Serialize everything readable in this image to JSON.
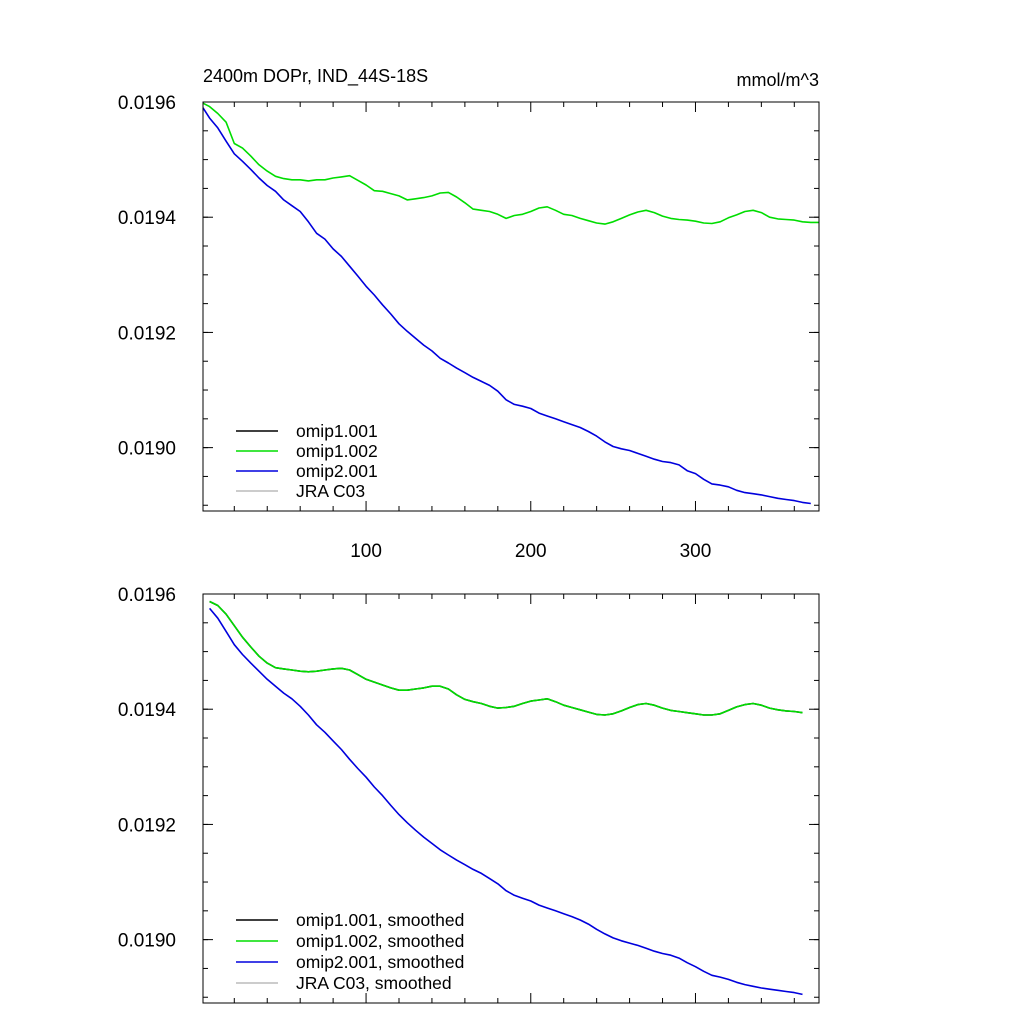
{
  "chart_data": [
    {
      "type": "line",
      "title": "2400m DOPr, IND_44S-18S",
      "units": "mmol/m^3",
      "xlim": [
        1,
        375
      ],
      "ylim": [
        0.01889,
        0.0196
      ],
      "xticks": [
        100,
        200,
        300
      ],
      "xtick_labels": [
        "100",
        "200",
        "300"
      ],
      "yticks": [
        0.0196,
        0.0194,
        0.0192,
        0.019
      ],
      "ytick_labels": [
        "0.0196",
        "0.0194",
        "0.0192",
        "0.0190"
      ],
      "grid": false,
      "legend_position": "bottom-left",
      "legend": [
        "omip1.001",
        "omip1.002",
        "omip2.001",
        "JRA C03"
      ],
      "series": [
        {
          "name": "omip1.001",
          "color": "#000000",
          "x": [],
          "y": []
        },
        {
          "name": "omip1.002",
          "color": "#00dd00",
          "x": [
            1,
            5,
            10,
            15,
            20,
            25,
            30,
            35,
            40,
            45,
            50,
            55,
            60,
            65,
            70,
            75,
            80,
            85,
            90,
            95,
            100,
            105,
            110,
            115,
            120,
            125,
            130,
            135,
            140,
            145,
            150,
            155,
            160,
            165,
            170,
            175,
            180,
            185,
            190,
            195,
            200,
            205,
            210,
            215,
            220,
            225,
            230,
            235,
            240,
            245,
            250,
            255,
            260,
            265,
            270,
            275,
            280,
            285,
            290,
            295,
            300,
            305,
            310,
            315,
            320,
            325,
            330,
            335,
            340,
            345,
            350,
            355,
            360,
            365,
            370,
            375
          ],
          "y": [
            0.019598,
            0.019592,
            0.01958,
            0.019565,
            0.019528,
            0.01952,
            0.019506,
            0.019491,
            0.01948,
            0.019471,
            0.019467,
            0.019465,
            0.019465,
            0.019463,
            0.019465,
            0.019465,
            0.019468,
            0.01947,
            0.019472,
            0.019464,
            0.019456,
            0.019446,
            0.019445,
            0.019441,
            0.019437,
            0.01943,
            0.019432,
            0.019434,
            0.019437,
            0.019442,
            0.019443,
            0.019435,
            0.019425,
            0.019414,
            0.019412,
            0.01941,
            0.019405,
            0.019398,
            0.019403,
            0.019405,
            0.01941,
            0.019416,
            0.019418,
            0.019412,
            0.019405,
            0.019403,
            0.019398,
            0.019394,
            0.01939,
            0.019388,
            0.019392,
            0.019398,
            0.019404,
            0.019409,
            0.019412,
            0.019408,
            0.019402,
            0.019398,
            0.019396,
            0.019395,
            0.019393,
            0.01939,
            0.019389,
            0.019392,
            0.019399,
            0.019404,
            0.01941,
            0.019412,
            0.019408,
            0.0194,
            0.019397,
            0.019396,
            0.019395,
            0.019392,
            0.019391,
            0.019391
          ]
        },
        {
          "name": "omip2.001",
          "color": "#0000dd",
          "x": [
            1,
            5,
            10,
            15,
            20,
            25,
            30,
            35,
            40,
            45,
            50,
            55,
            60,
            65,
            70,
            75,
            80,
            85,
            90,
            95,
            100,
            105,
            110,
            115,
            120,
            125,
            130,
            135,
            140,
            145,
            150,
            155,
            160,
            165,
            170,
            175,
            180,
            185,
            190,
            195,
            200,
            205,
            210,
            215,
            220,
            225,
            230,
            235,
            240,
            245,
            250,
            255,
            260,
            265,
            270,
            275,
            280,
            285,
            290,
            295,
            300,
            305,
            310,
            315,
            320,
            325,
            330,
            335,
            340,
            345,
            350,
            355,
            360,
            365,
            370
          ],
          "y": [
            0.01959,
            0.019572,
            0.019555,
            0.019532,
            0.01951,
            0.019497,
            0.019483,
            0.019468,
            0.019455,
            0.019445,
            0.01943,
            0.01942,
            0.01941,
            0.019392,
            0.019372,
            0.019362,
            0.019345,
            0.019332,
            0.019315,
            0.019298,
            0.01928,
            0.019265,
            0.019248,
            0.019232,
            0.019215,
            0.019202,
            0.01919,
            0.019178,
            0.019168,
            0.019155,
            0.019147,
            0.019138,
            0.01913,
            0.019122,
            0.019115,
            0.019108,
            0.019098,
            0.019083,
            0.019075,
            0.019072,
            0.019068,
            0.01906,
            0.019055,
            0.01905,
            0.019045,
            0.01904,
            0.019035,
            0.019028,
            0.01902,
            0.01901,
            0.019002,
            0.018998,
            0.018995,
            0.01899,
            0.018985,
            0.01898,
            0.018976,
            0.018974,
            0.01897,
            0.01896,
            0.018955,
            0.018945,
            0.018937,
            0.018935,
            0.018932,
            0.018926,
            0.018922,
            0.01892,
            0.018918,
            0.018915,
            0.018912,
            0.01891,
            0.018908,
            0.018905,
            0.018903
          ]
        },
        {
          "name": "JRA C03",
          "color": "#bbbbbb",
          "x": [],
          "y": []
        }
      ]
    },
    {
      "type": "line",
      "xlim": [
        1,
        375
      ],
      "ylim": [
        0.01889,
        0.0196
      ],
      "xticks": [
        100,
        200,
        300
      ],
      "yticks": [
        0.0196,
        0.0194,
        0.0192,
        0.019
      ],
      "ytick_labels": [
        "0.0196",
        "0.0194",
        "0.0192",
        "0.0190"
      ],
      "grid": false,
      "legend_position": "bottom-left",
      "legend": [
        "omip1.001, smoothed",
        "omip1.002, smoothed",
        "omip2.001, smoothed",
        "JRA C03, smoothed"
      ],
      "series": [
        {
          "name": "omip1.001, smoothed",
          "color": "#000000",
          "x": [
            5,
            10,
            15,
            20,
            25,
            30,
            35,
            40,
            45,
            50,
            55,
            60,
            65,
            70,
            75,
            80,
            85,
            90,
            95,
            100,
            105,
            110,
            115,
            120,
            125,
            130,
            135,
            140,
            145,
            150,
            155,
            160,
            165,
            170,
            175,
            180,
            185,
            190,
            195,
            200,
            205,
            210,
            215,
            220,
            225,
            230,
            235,
            240,
            245,
            250,
            255,
            260,
            265,
            270,
            275,
            280,
            285,
            290,
            295,
            300,
            305,
            310,
            315,
            320,
            325,
            330,
            335,
            340,
            345,
            350,
            355,
            360,
            365
          ],
          "y": [
            0.019587,
            0.01958,
            0.019565,
            0.019545,
            0.019525,
            0.019508,
            0.019492,
            0.01948,
            0.019472,
            0.01947,
            0.019468,
            0.019466,
            0.019465,
            0.019466,
            0.019468,
            0.01947,
            0.019471,
            0.019468,
            0.01946,
            0.019452,
            0.019447,
            0.019442,
            0.019437,
            0.019433,
            0.019433,
            0.019435,
            0.019437,
            0.01944,
            0.01944,
            0.019435,
            0.019425,
            0.019417,
            0.019413,
            0.01941,
            0.019405,
            0.019402,
            0.019403,
            0.019405,
            0.01941,
            0.019414,
            0.019416,
            0.019418,
            0.019413,
            0.019407,
            0.019403,
            0.019399,
            0.019395,
            0.019391,
            0.01939,
            0.019392,
            0.019397,
            0.019403,
            0.019408,
            0.01941,
            0.019407,
            0.019402,
            0.019398,
            0.019396,
            0.019394,
            0.019392,
            0.01939,
            0.01939,
            0.019392,
            0.019398,
            0.019404,
            0.019408,
            0.01941,
            0.019407,
            0.019402,
            0.019399,
            0.019397,
            0.019396,
            0.019394
          ]
        },
        {
          "name": "omip1.002, smoothed",
          "color": "#00dd00",
          "x": [
            5,
            10,
            15,
            20,
            25,
            30,
            35,
            40,
            45,
            50,
            55,
            60,
            65,
            70,
            75,
            80,
            85,
            90,
            95,
            100,
            105,
            110,
            115,
            120,
            125,
            130,
            135,
            140,
            145,
            150,
            155,
            160,
            165,
            170,
            175,
            180,
            185,
            190,
            195,
            200,
            205,
            210,
            215,
            220,
            225,
            230,
            235,
            240,
            245,
            250,
            255,
            260,
            265,
            270,
            275,
            280,
            285,
            290,
            295,
            300,
            305,
            310,
            315,
            320,
            325,
            330,
            335,
            340,
            345,
            350,
            355,
            360,
            365
          ],
          "y": [
            0.019587,
            0.01958,
            0.019565,
            0.019545,
            0.019525,
            0.019508,
            0.019492,
            0.01948,
            0.019472,
            0.01947,
            0.019468,
            0.019466,
            0.019465,
            0.019466,
            0.019468,
            0.01947,
            0.019471,
            0.019468,
            0.01946,
            0.019452,
            0.019447,
            0.019442,
            0.019437,
            0.019433,
            0.019433,
            0.019435,
            0.019437,
            0.01944,
            0.01944,
            0.019435,
            0.019425,
            0.019417,
            0.019413,
            0.01941,
            0.019405,
            0.019402,
            0.019403,
            0.019405,
            0.01941,
            0.019414,
            0.019416,
            0.019418,
            0.019413,
            0.019407,
            0.019403,
            0.019399,
            0.019395,
            0.019391,
            0.01939,
            0.019392,
            0.019397,
            0.019403,
            0.019408,
            0.01941,
            0.019407,
            0.019402,
            0.019398,
            0.019396,
            0.019394,
            0.019392,
            0.01939,
            0.01939,
            0.019392,
            0.019398,
            0.019404,
            0.019408,
            0.01941,
            0.019407,
            0.019402,
            0.019399,
            0.019397,
            0.019396,
            0.019394
          ]
        },
        {
          "name": "omip2.001, smoothed",
          "color": "#0000dd",
          "x": [
            5,
            10,
            15,
            20,
            25,
            30,
            35,
            40,
            45,
            50,
            55,
            60,
            65,
            70,
            75,
            80,
            85,
            90,
            95,
            100,
            105,
            110,
            115,
            120,
            125,
            130,
            135,
            140,
            145,
            150,
            155,
            160,
            165,
            170,
            175,
            180,
            185,
            190,
            195,
            200,
            205,
            210,
            215,
            220,
            225,
            230,
            235,
            240,
            245,
            250,
            255,
            260,
            265,
            270,
            275,
            280,
            285,
            290,
            295,
            300,
            305,
            310,
            315,
            320,
            325,
            330,
            335,
            340,
            345,
            350,
            355,
            360,
            365
          ],
          "y": [
            0.019575,
            0.019558,
            0.019535,
            0.019512,
            0.019495,
            0.01948,
            0.019466,
            0.019452,
            0.01944,
            0.019428,
            0.019418,
            0.019405,
            0.01939,
            0.019373,
            0.01936,
            0.019345,
            0.01933,
            0.019313,
            0.019297,
            0.019282,
            0.019265,
            0.01925,
            0.019233,
            0.019217,
            0.019203,
            0.01919,
            0.019178,
            0.019167,
            0.019156,
            0.019147,
            0.019138,
            0.01913,
            0.019122,
            0.019115,
            0.019106,
            0.019097,
            0.019085,
            0.019077,
            0.019072,
            0.019067,
            0.01906,
            0.019055,
            0.01905,
            0.019045,
            0.01904,
            0.019034,
            0.019027,
            0.019018,
            0.01901,
            0.019003,
            0.018998,
            0.018994,
            0.01899,
            0.018985,
            0.01898,
            0.018976,
            0.018973,
            0.018968,
            0.01896,
            0.018953,
            0.018945,
            0.018938,
            0.018935,
            0.018931,
            0.018926,
            0.018922,
            0.018919,
            0.018916,
            0.018914,
            0.018912,
            0.01891,
            0.018908,
            0.018905
          ]
        },
        {
          "name": "JRA C03, smoothed",
          "color": "#bbbbbb",
          "x": [],
          "y": []
        }
      ]
    }
  ]
}
